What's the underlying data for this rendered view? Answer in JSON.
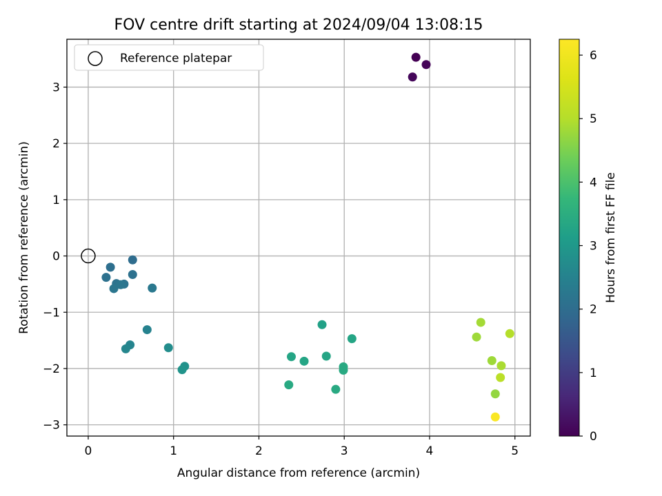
{
  "chart_data": {
    "type": "scatter",
    "title": "FOV centre drift starting at 2024/09/04 13:08:15",
    "xlabel": "Angular distance from reference (arcmin)",
    "ylabel": "Rotation from reference (arcmin)",
    "xlim": [
      -0.25,
      5.18
    ],
    "ylim": [
      -3.2,
      3.85
    ],
    "xticks": [
      0,
      1,
      2,
      3,
      4,
      5
    ],
    "yticks": [
      -3,
      -2,
      -1,
      0,
      1,
      2,
      3
    ],
    "grid": true,
    "legend": {
      "position": "top-left",
      "entries": [
        "Reference platepar"
      ]
    },
    "reference_point": {
      "x": 0,
      "y": 0,
      "label": "Reference platepar"
    },
    "colorbar": {
      "label": "Hours from first FF file",
      "colormap": "viridis",
      "range": [
        0,
        6.25
      ],
      "ticks": [
        0,
        1,
        2,
        3,
        4,
        5,
        6
      ]
    },
    "points": [
      {
        "x": 3.84,
        "y": 3.53,
        "c": 0.0
      },
      {
        "x": 3.96,
        "y": 3.4,
        "c": 0.05
      },
      {
        "x": 3.8,
        "y": 3.18,
        "c": 0.1
      },
      {
        "x": 0.52,
        "y": -0.07,
        "c": 2.0
      },
      {
        "x": 0.26,
        "y": -0.2,
        "c": 2.05
      },
      {
        "x": 0.21,
        "y": -0.38,
        "c": 2.1
      },
      {
        "x": 0.52,
        "y": -0.33,
        "c": 2.1
      },
      {
        "x": 0.33,
        "y": -0.49,
        "c": 2.15
      },
      {
        "x": 0.42,
        "y": -0.5,
        "c": 2.15
      },
      {
        "x": 0.38,
        "y": -0.51,
        "c": 2.2
      },
      {
        "x": 0.3,
        "y": -0.58,
        "c": 2.2
      },
      {
        "x": 0.75,
        "y": -0.57,
        "c": 2.25
      },
      {
        "x": 0.69,
        "y": -1.31,
        "c": 2.5
      },
      {
        "x": 0.49,
        "y": -1.58,
        "c": 2.55
      },
      {
        "x": 0.44,
        "y": -1.65,
        "c": 2.6
      },
      {
        "x": 0.94,
        "y": -1.63,
        "c": 2.75
      },
      {
        "x": 1.13,
        "y": -1.96,
        "c": 2.85
      },
      {
        "x": 1.1,
        "y": -2.02,
        "c": 2.9
      },
      {
        "x": 2.74,
        "y": -1.22,
        "c": 3.2
      },
      {
        "x": 3.09,
        "y": -1.47,
        "c": 3.3
      },
      {
        "x": 2.38,
        "y": -1.79,
        "c": 3.3
      },
      {
        "x": 2.79,
        "y": -1.78,
        "c": 3.3
      },
      {
        "x": 2.53,
        "y": -1.87,
        "c": 3.3
      },
      {
        "x": 2.99,
        "y": -1.97,
        "c": 3.4
      },
      {
        "x": 2.99,
        "y": -2.03,
        "c": 3.4
      },
      {
        "x": 2.35,
        "y": -2.29,
        "c": 3.4
      },
      {
        "x": 2.9,
        "y": -2.37,
        "c": 3.4
      },
      {
        "x": 4.6,
        "y": -1.18,
        "c": 4.85
      },
      {
        "x": 4.55,
        "y": -1.44,
        "c": 4.8
      },
      {
        "x": 4.94,
        "y": -1.38,
        "c": 5.0
      },
      {
        "x": 4.73,
        "y": -1.86,
        "c": 4.8
      },
      {
        "x": 4.84,
        "y": -1.95,
        "c": 4.9
      },
      {
        "x": 4.83,
        "y": -2.16,
        "c": 5.1
      },
      {
        "x": 4.77,
        "y": -2.45,
        "c": 4.7
      },
      {
        "x": 4.77,
        "y": -2.86,
        "c": 6.2
      }
    ]
  }
}
